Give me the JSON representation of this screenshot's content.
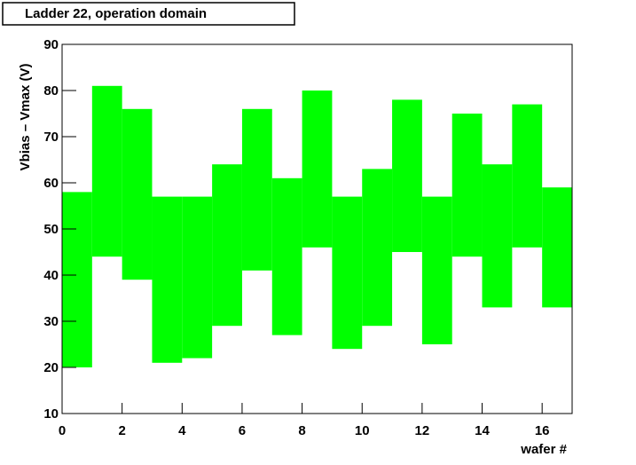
{
  "chart_data": {
    "type": "range-histogram",
    "title": "Ladder 22, operation domain",
    "xlabel": "wafer #",
    "ylabel": "Vbias – Vmax (V)",
    "color": "#00ff00",
    "bins": [
      0,
      1,
      2,
      3,
      4,
      5,
      6,
      7,
      8,
      9,
      10,
      11,
      12,
      13,
      14,
      15,
      16,
      17
    ],
    "lows": [
      20,
      44,
      39,
      21,
      22,
      29,
      41,
      27,
      46,
      24,
      29,
      45,
      25,
      44,
      33,
      46,
      33
    ],
    "highs": [
      58,
      81,
      76,
      57,
      57,
      64,
      76,
      61,
      80,
      57,
      63,
      78,
      57,
      75,
      64,
      77,
      59
    ],
    "xlim": [
      0,
      17
    ],
    "xticks": [
      0,
      2,
      4,
      6,
      8,
      10,
      12,
      14,
      16
    ],
    "ylim": [
      10,
      90
    ],
    "yticks": [
      10,
      20,
      30,
      40,
      50,
      60,
      70,
      80,
      90
    ]
  }
}
